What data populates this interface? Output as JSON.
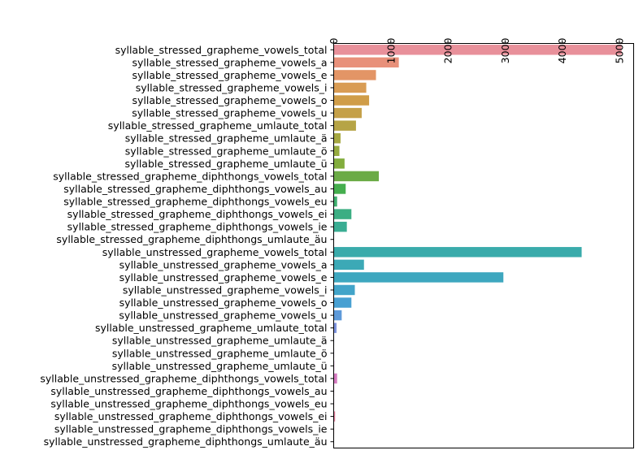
{
  "chart_data": {
    "type": "bar",
    "orientation": "horizontal",
    "xaxis_position": "top",
    "tick_label_rotation": -90,
    "title": "",
    "xlabel": "",
    "ylabel": "",
    "xlim": [
      0,
      5250
    ],
    "xticks": [
      0,
      1000,
      2000,
      3000,
      4000,
      5000
    ],
    "grid": false,
    "legend": "none",
    "categories": [
      "syllable_stressed_grapheme_vowels_total",
      "syllable_stressed_grapheme_vowels_a",
      "syllable_stressed_grapheme_vowels_e",
      "syllable_stressed_grapheme_vowels_i",
      "syllable_stressed_grapheme_vowels_o",
      "syllable_stressed_grapheme_vowels_u",
      "syllable_stressed_grapheme_umlaute_total",
      "syllable_stressed_grapheme_umlaute_ä",
      "syllable_stressed_grapheme_umlaute_ö",
      "syllable_stressed_grapheme_umlaute_ü",
      "syllable_stressed_grapheme_diphthongs_vowels_total",
      "syllable_stressed_grapheme_diphthongs_vowels_au",
      "syllable_stressed_grapheme_diphthongs_vowels_eu",
      "syllable_stressed_grapheme_diphthongs_vowels_ei",
      "syllable_stressed_grapheme_diphthongs_vowels_ie",
      "syllable_stressed_grapheme_diphthongs_umlaute_äu",
      "syllable_unstressed_grapheme_vowels_total",
      "syllable_unstressed_grapheme_vowels_a",
      "syllable_unstressed_grapheme_vowels_e",
      "syllable_unstressed_grapheme_vowels_i",
      "syllable_unstressed_grapheme_vowels_o",
      "syllable_unstressed_grapheme_vowels_u",
      "syllable_unstressed_grapheme_umlaute_total",
      "syllable_unstressed_grapheme_umlaute_ä",
      "syllable_unstressed_grapheme_umlaute_ö",
      "syllable_unstressed_grapheme_umlaute_ü",
      "syllable_unstressed_grapheme_diphthongs_vowels_total",
      "syllable_unstressed_grapheme_diphthongs_vowels_au",
      "syllable_unstressed_grapheme_diphthongs_vowels_eu",
      "syllable_unstressed_grapheme_diphthongs_vowels_ei",
      "syllable_unstressed_grapheme_diphthongs_vowels_ie",
      "syllable_unstressed_grapheme_diphthongs_umlaute_äu"
    ],
    "values": [
      5040,
      1140,
      740,
      570,
      620,
      490,
      390,
      120,
      100,
      190,
      790,
      210,
      60,
      310,
      230,
      5,
      4340,
      530,
      2970,
      370,
      310,
      140,
      50,
      8,
      8,
      10,
      60,
      8,
      8,
      25,
      8,
      5
    ],
    "colors": [
      "#e8909a",
      "#e8907a",
      "#e39566",
      "#d99c54",
      "#d09d48",
      "#c5a048",
      "#b6a446",
      "#a6a842",
      "#96ab3f",
      "#82ad3d",
      "#6bab46",
      "#45ae4e",
      "#3eaf6e",
      "#3cae83",
      "#3aad93",
      "#3aaca0",
      "#3aabab",
      "#3ca9b6",
      "#3ea7bf",
      "#42a4c9",
      "#48a0d2",
      "#5e9ad9",
      "#7c92dd",
      "#9987dd",
      "#b37ed7",
      "#c67acc",
      "#d47ac0",
      "#db7ab4",
      "#e07ba8",
      "#e57e9c",
      "#e88594",
      "#e98c90"
    ]
  }
}
